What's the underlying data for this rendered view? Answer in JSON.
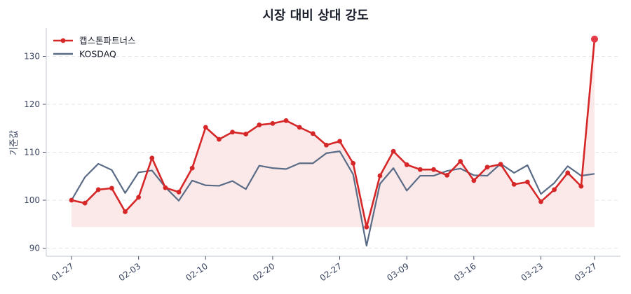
{
  "chart_data": {
    "type": "line",
    "title": "시장 대비 상대 강도",
    "xlabel": "",
    "ylabel": "기준값",
    "ylim": [
      88.5,
      136
    ],
    "yticks": [
      90,
      100,
      110,
      120,
      130
    ],
    "grid": "horizontal dashed",
    "legend_position": "upper left",
    "x_tick_labels": [
      {
        "index": 0,
        "label": "01-27"
      },
      {
        "index": 5,
        "label": "02-03"
      },
      {
        "index": 10,
        "label": "02-10"
      },
      {
        "index": 15,
        "label": "02-20"
      },
      {
        "index": 20,
        "label": "02-27"
      },
      {
        "index": 25,
        "label": "03-09"
      },
      {
        "index": 30,
        "label": "03-16"
      },
      {
        "index": 35,
        "label": "03-23"
      },
      {
        "index": 39,
        "label": "03-27"
      }
    ],
    "x_count": 40,
    "series": [
      {
        "name": "캡스톤파트너스",
        "color": "#d62728",
        "marker": true,
        "fill_below": true,
        "fill_color": "#fbe7e8",
        "last_point_color": "#e63946",
        "values": [
          100.0,
          99.4,
          102.2,
          102.5,
          97.6,
          100.6,
          108.8,
          102.6,
          101.7,
          106.7,
          115.2,
          112.7,
          114.2,
          113.8,
          115.7,
          116.0,
          116.6,
          115.2,
          113.9,
          111.5,
          112.3,
          107.7,
          94.4,
          105.1,
          110.2,
          107.4,
          106.4,
          106.4,
          105.2,
          108.1,
          104.1,
          106.9,
          107.5,
          103.3,
          103.8,
          99.7,
          102.2,
          105.7,
          102.9,
          133.6
        ]
      },
      {
        "name": "KOSDAQ",
        "color": "#5a6b85",
        "marker": false,
        "values": [
          100.0,
          104.8,
          107.6,
          106.3,
          101.5,
          105.8,
          106.2,
          102.7,
          99.9,
          104.1,
          103.1,
          103.0,
          104.0,
          102.3,
          107.2,
          106.7,
          106.5,
          107.7,
          107.7,
          109.8,
          110.2,
          105.4,
          90.5,
          103.4,
          106.7,
          102.0,
          105.1,
          105.1,
          106.1,
          106.6,
          105.2,
          105.1,
          107.6,
          105.7,
          107.3,
          101.3,
          103.6,
          107.1,
          105.1,
          105.5
        ]
      }
    ]
  }
}
